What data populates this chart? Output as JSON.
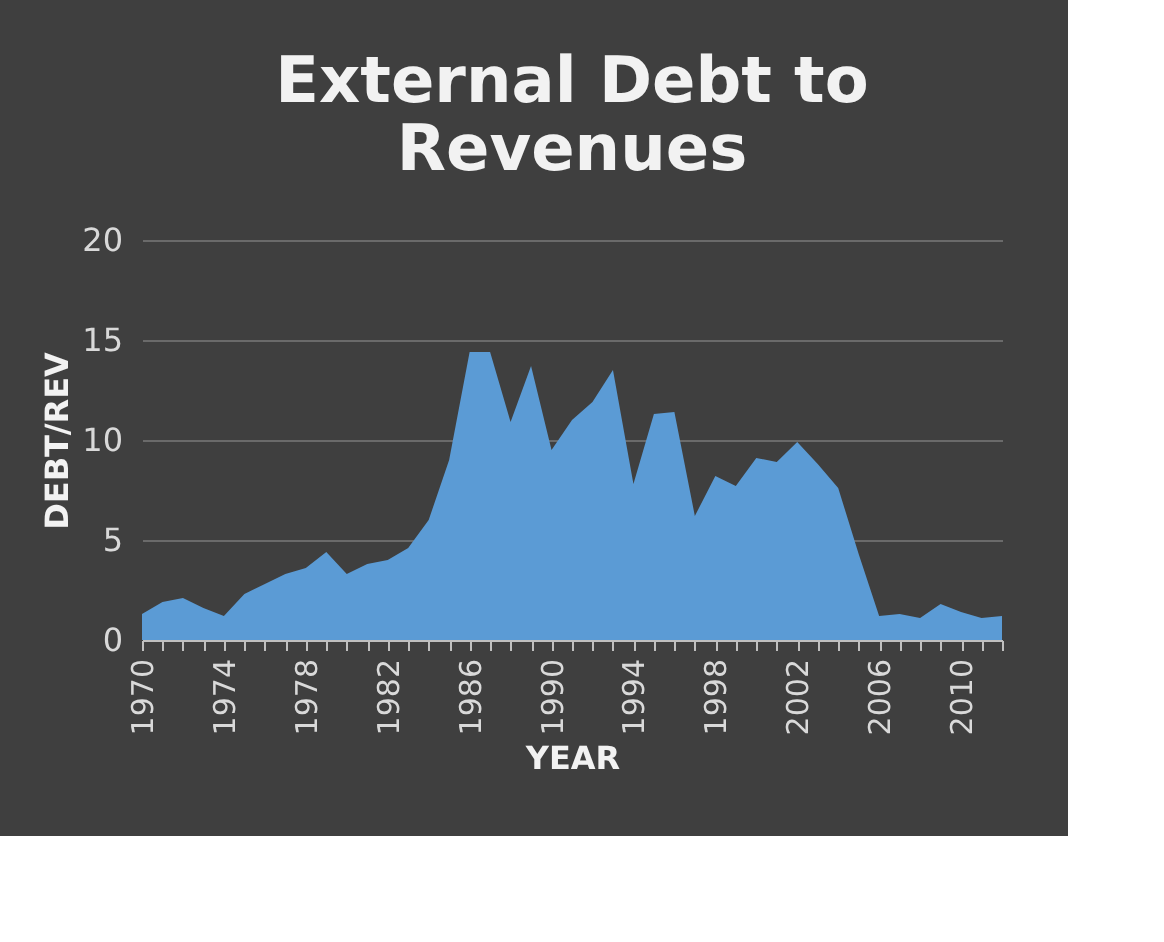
{
  "chart_data": {
    "type": "area",
    "title": "External Debt to Revenues",
    "xlabel": "YEAR",
    "ylabel": "DEBT/REV",
    "categories": [
      "1970",
      null,
      null,
      null,
      "1974",
      null,
      null,
      null,
      "1978",
      null,
      null,
      null,
      "1982",
      null,
      null,
      null,
      "1986",
      null,
      null,
      null,
      "1990",
      null,
      null,
      null,
      "1994",
      null,
      null,
      null,
      "1998",
      null,
      null,
      null,
      "2002",
      null,
      null,
      null,
      "2006",
      null,
      null,
      null,
      "2010",
      null,
      null
    ],
    "series": [
      {
        "color": "#5b9bd5",
        "values": [
          1.3,
          1.9,
          2.1,
          1.6,
          1.2,
          2.3,
          2.8,
          3.3,
          3.6,
          4.4,
          3.3,
          3.8,
          4.0,
          4.6,
          6.0,
          9.0,
          14.4,
          14.4,
          10.9,
          13.7,
          9.5,
          11.0,
          11.9,
          13.5,
          7.8,
          11.3,
          11.4,
          6.2,
          8.2,
          7.7,
          9.1,
          8.9,
          9.9,
          8.8,
          7.6,
          4.3,
          1.2,
          1.3,
          1.1,
          1.8,
          1.4,
          1.1,
          1.2
        ]
      }
    ],
    "ylim": [
      0,
      20
    ],
    "yticks": [
      0,
      5,
      10,
      15,
      20
    ],
    "grid": "y"
  }
}
